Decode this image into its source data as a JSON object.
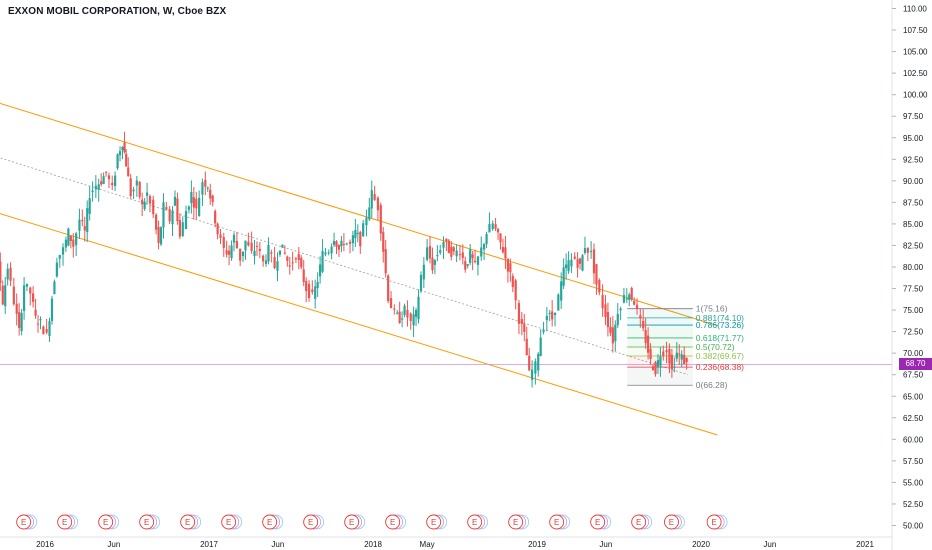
{
  "title": "EXXON MOBIL CORPORATION, W, Cboe BZX",
  "last_price": {
    "label": "68.70",
    "value": 68.7,
    "color": "#9c27b0"
  },
  "colors": {
    "up": "#26a69a",
    "down": "#ef5350",
    "channel": "#ff9800",
    "midline": "#9e9e9e",
    "axis_text": "#131722",
    "event": "#e53935"
  },
  "chart_data": {
    "type": "candlestick",
    "title": "EXXON MOBIL CORPORATION, W, Cboe BZX",
    "timeframe": "W",
    "y_axis": {
      "min": 50,
      "max": 110,
      "ticks": [
        "50.00",
        "52.50",
        "55.00",
        "57.50",
        "60.00",
        "62.50",
        "65.00",
        "67.50",
        "70.00",
        "72.50",
        "75.00",
        "77.50",
        "80.00",
        "82.50",
        "85.00",
        "87.50",
        "90.00",
        "92.50",
        "95.00",
        "97.50",
        "100.00",
        "102.50",
        "105.00",
        "107.50",
        "110.00"
      ]
    },
    "x_axis": {
      "ticks": [
        "2016",
        "Jun",
        "2017",
        "Jun",
        "2018",
        "May",
        "2019",
        "Jun",
        "2020",
        "Jun",
        "2021"
      ]
    },
    "x_tick_dates": [
      2016.0,
      2016.42,
      2017.0,
      2017.42,
      2018.0,
      2018.33,
      2019.0,
      2019.42,
      2020.0,
      2020.42,
      2021.0
    ],
    "price_path": [
      [
        2015.52,
        73.0
      ],
      [
        2015.55,
        76.0
      ],
      [
        2015.58,
        79.0
      ],
      [
        2015.62,
        82.5
      ],
      [
        2015.65,
        84.5
      ],
      [
        2015.68,
        79.0
      ],
      [
        2015.72,
        80.5
      ],
      [
        2015.75,
        76.0
      ],
      [
        2015.78,
        80.0
      ],
      [
        2015.82,
        76.0
      ],
      [
        2015.85,
        72.5
      ],
      [
        2015.88,
        78.0
      ],
      [
        2015.92,
        77.0
      ],
      [
        2015.95,
        74.0
      ],
      [
        2015.98,
        73.5
      ],
      [
        2016.02,
        72.0
      ],
      [
        2016.05,
        76.5
      ],
      [
        2016.08,
        81.0
      ],
      [
        2016.12,
        82.0
      ],
      [
        2016.15,
        84.0
      ],
      [
        2016.18,
        82.5
      ],
      [
        2016.22,
        85.5
      ],
      [
        2016.25,
        84.0
      ],
      [
        2016.28,
        88.5
      ],
      [
        2016.32,
        89.5
      ],
      [
        2016.35,
        90.0
      ],
      [
        2016.38,
        91.0
      ],
      [
        2016.42,
        89.0
      ],
      [
        2016.45,
        93.0
      ],
      [
        2016.48,
        94.5
      ],
      [
        2016.5,
        92.0
      ],
      [
        2016.53,
        88.5
      ],
      [
        2016.57,
        89.5
      ],
      [
        2016.6,
        87.0
      ],
      [
        2016.63,
        88.5
      ],
      [
        2016.67,
        86.0
      ],
      [
        2016.7,
        82.5
      ],
      [
        2016.73,
        87.0
      ],
      [
        2016.77,
        85.5
      ],
      [
        2016.8,
        88.0
      ],
      [
        2016.83,
        83.5
      ],
      [
        2016.87,
        86.5
      ],
      [
        2016.9,
        88.5
      ],
      [
        2016.93,
        86.5
      ],
      [
        2016.97,
        90.0
      ],
      [
        2017.0,
        89.5
      ],
      [
        2017.03,
        87.0
      ],
      [
        2017.06,
        84.0
      ],
      [
        2017.1,
        82.0
      ],
      [
        2017.13,
        81.5
      ],
      [
        2017.16,
        83.5
      ],
      [
        2017.2,
        81.0
      ],
      [
        2017.23,
        83.0
      ],
      [
        2017.27,
        81.5
      ],
      [
        2017.3,
        82.5
      ],
      [
        2017.34,
        80.5
      ],
      [
        2017.37,
        82.0
      ],
      [
        2017.41,
        80.0
      ],
      [
        2017.44,
        82.5
      ],
      [
        2017.47,
        81.5
      ],
      [
        2017.5,
        80.0
      ],
      [
        2017.54,
        81.5
      ],
      [
        2017.57,
        79.5
      ],
      [
        2017.6,
        77.5
      ],
      [
        2017.64,
        76.5
      ],
      [
        2017.67,
        78.5
      ],
      [
        2017.7,
        81.5
      ],
      [
        2017.74,
        82.0
      ],
      [
        2017.77,
        83.5
      ],
      [
        2017.8,
        82.0
      ],
      [
        2017.83,
        83.0
      ],
      [
        2017.87,
        82.5
      ],
      [
        2017.9,
        84.0
      ],
      [
        2017.93,
        83.0
      ],
      [
        2017.97,
        86.0
      ],
      [
        2018.0,
        88.5
      ],
      [
        2018.04,
        87.0
      ],
      [
        2018.07,
        82.0
      ],
      [
        2018.1,
        76.5
      ],
      [
        2018.14,
        74.5
      ],
      [
        2018.17,
        74.0
      ],
      [
        2018.2,
        75.0
      ],
      [
        2018.24,
        73.5
      ],
      [
        2018.27,
        74.5
      ],
      [
        2018.3,
        79.0
      ],
      [
        2018.34,
        82.0
      ],
      [
        2018.37,
        80.0
      ],
      [
        2018.4,
        81.5
      ],
      [
        2018.44,
        83.0
      ],
      [
        2018.47,
        82.0
      ],
      [
        2018.5,
        81.5
      ],
      [
        2018.54,
        82.0
      ],
      [
        2018.57,
        80.0
      ],
      [
        2018.6,
        81.5
      ],
      [
        2018.63,
        80.0
      ],
      [
        2018.67,
        82.0
      ],
      [
        2018.7,
        84.0
      ],
      [
        2018.74,
        85.0
      ],
      [
        2018.77,
        83.5
      ],
      [
        2018.8,
        82.0
      ],
      [
        2018.83,
        80.0
      ],
      [
        2018.86,
        78.0
      ],
      [
        2018.9,
        74.0
      ],
      [
        2018.93,
        72.0
      ],
      [
        2018.96,
        67.5
      ],
      [
        2019.0,
        68.5
      ],
      [
        2019.03,
        72.0
      ],
      [
        2019.07,
        74.5
      ],
      [
        2019.1,
        74.0
      ],
      [
        2019.14,
        76.5
      ],
      [
        2019.17,
        79.5
      ],
      [
        2019.2,
        80.5
      ],
      [
        2019.24,
        81.0
      ],
      [
        2019.27,
        80.0
      ],
      [
        2019.3,
        82.5
      ],
      [
        2019.34,
        81.5
      ],
      [
        2019.37,
        78.0
      ],
      [
        2019.41,
        75.5
      ],
      [
        2019.44,
        73.5
      ],
      [
        2019.47,
        71.5
      ],
      [
        2019.5,
        75.0
      ],
      [
        2019.54,
        76.5
      ],
      [
        2019.57,
        77.0
      ],
      [
        2019.6,
        76.0
      ],
      [
        2019.64,
        73.5
      ],
      [
        2019.67,
        71.5
      ],
      [
        2019.7,
        69.0
      ],
      [
        2019.73,
        68.0
      ],
      [
        2019.76,
        70.0
      ],
      [
        2019.8,
        70.5
      ],
      [
        2019.83,
        68.0
      ],
      [
        2019.86,
        70.0
      ],
      [
        2019.89,
        69.5
      ],
      [
        2019.92,
        68.7
      ]
    ],
    "channel": {
      "upper": {
        "start": [
          2015.52,
          100.2
        ],
        "end": [
          2020.1,
          73.2
        ]
      },
      "lower": {
        "start": [
          2015.52,
          87.4
        ],
        "end": [
          2020.1,
          60.5
        ]
      },
      "middle": {
        "start": [
          2015.52,
          93.9
        ],
        "end": [
          2019.92,
          67.5
        ]
      }
    },
    "fibonacci": [
      {
        "label": "1(75.16)",
        "value": 75.16,
        "color": "#787b86"
      },
      {
        "label": "0.881(74.10)",
        "value": 74.1,
        "color": "#26a69a"
      },
      {
        "label": "0.786(73.26)",
        "value": 73.26,
        "color": "#0097a7"
      },
      {
        "label": "0.618(71.77)",
        "value": 71.77,
        "color": "#2bb673"
      },
      {
        "label": "0.5(70.72)",
        "value": 70.72,
        "color": "#4caf50"
      },
      {
        "label": "0.382(69.67)",
        "value": 69.67,
        "color": "#8bc34a"
      },
      {
        "label": "0.236(68.38)",
        "value": 68.38,
        "color": "#e53935"
      },
      {
        "label": "0(66.28)",
        "value": 66.28,
        "color": "#787b86"
      }
    ],
    "fib_range": [
      2019.55,
      2019.95
    ],
    "events": {
      "label": "E",
      "dates": [
        2015.62,
        2015.87,
        2016.12,
        2016.37,
        2016.62,
        2016.87,
        2017.12,
        2017.37,
        2017.62,
        2017.87,
        2018.12,
        2018.37,
        2018.62,
        2018.87,
        2019.12,
        2019.37,
        2019.62,
        2019.82,
        2020.08
      ]
    }
  }
}
